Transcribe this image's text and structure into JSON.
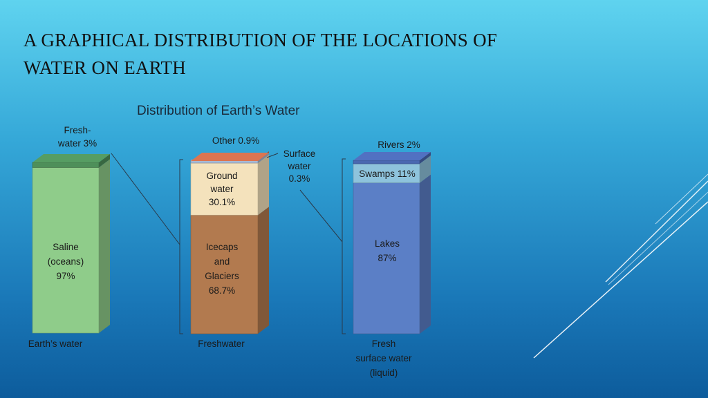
{
  "slide": {
    "title_line1": "A GRAPHICAL DISTRIBUTION OF THE LOCATIONS OF",
    "title_line2": "WATER ON EARTH"
  },
  "chart_data": {
    "type": "bar",
    "title": "Distribution of Earth’s Water",
    "bars": [
      {
        "category": "Earth’s water",
        "segments": [
          {
            "name": "Saline (oceans)",
            "lines": [
              "Saline",
              "(oceans)",
              "97%"
            ],
            "value": 97,
            "color": "#8fcc8a"
          },
          {
            "name": "Freshwater",
            "lines": [
              "Fresh-",
              "water 3%"
            ],
            "value": 3,
            "color": "#4e8f5a"
          }
        ]
      },
      {
        "category": "Freshwater",
        "segments": [
          {
            "name": "Icecaps and Glaciers",
            "lines": [
              "Icecaps",
              "and",
              "Glaciers",
              "68.7%"
            ],
            "value": 68.7,
            "color": "#b27a4f"
          },
          {
            "name": "Ground water",
            "lines": [
              "Ground",
              "water",
              "30.1%"
            ],
            "value": 30.1,
            "color": "#f4e2bc"
          },
          {
            "name": "Surface water",
            "lines": [
              "Surface",
              "water",
              "0.3%"
            ],
            "value": 0.3,
            "color": "#a9b9d3"
          },
          {
            "name": "Other",
            "lines": [
              "Other 0.9%"
            ],
            "value": 0.9,
            "color": "#c76a4a"
          }
        ]
      },
      {
        "category": "Fresh surface water (liquid)",
        "category_lines": [
          "Fresh",
          "surface water",
          "(liquid)"
        ],
        "segments": [
          {
            "name": "Lakes",
            "lines": [
              "Lakes",
              "87%"
            ],
            "value": 87,
            "color": "#5b7fc6"
          },
          {
            "name": "Swamps",
            "lines": [
              "Swamps 11%"
            ],
            "value": 11,
            "color": "#8ec3dc"
          },
          {
            "name": "Rivers",
            "lines": [
              "Rivers 2%"
            ],
            "value": 2,
            "color": "#4a67b0"
          }
        ]
      }
    ]
  }
}
